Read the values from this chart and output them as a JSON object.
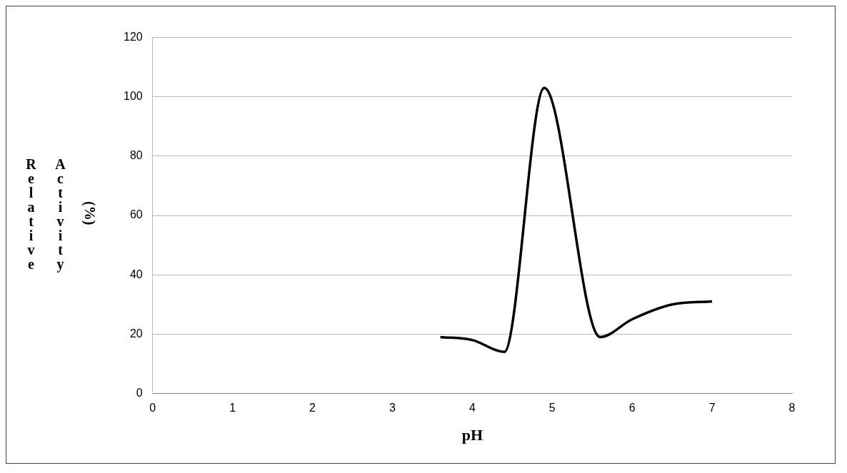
{
  "chart_data": {
    "type": "line",
    "xlabel": "pH",
    "ylabel": "Relative Activity (%)",
    "x": [
      3.6,
      4.0,
      4.4,
      4.9,
      5.6,
      6.0,
      6.5,
      7.0
    ],
    "series": [
      {
        "color": "#000000",
        "values": [
          19,
          18,
          14,
          103,
          19,
          25,
          30,
          31
        ]
      }
    ],
    "xlim": [
      0,
      8
    ],
    "xticks": [
      0,
      1,
      2,
      3,
      4,
      5,
      6,
      7,
      8
    ],
    "ylim": [
      0,
      120
    ],
    "yticks": [
      0,
      20,
      40,
      60,
      80,
      100,
      120
    ],
    "grid": "y",
    "legend": false,
    "marker": "none",
    "line_style": "solid"
  }
}
